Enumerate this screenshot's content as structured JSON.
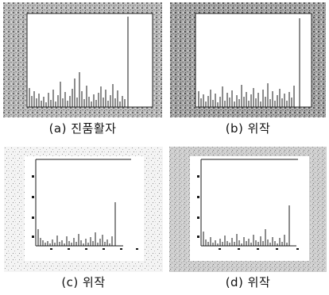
{
  "figure": {
    "panels": [
      {
        "caption": "(a) 진품활자"
      },
      {
        "caption": "(b) 위작"
      },
      {
        "caption": "(c) 위작"
      },
      {
        "caption": "(d) 위작"
      }
    ]
  },
  "colors": {
    "ink": "#111111",
    "paper": "#ffffff",
    "texture_light": "#d8d8d8",
    "texture_dark": "#6a6a6a"
  }
}
